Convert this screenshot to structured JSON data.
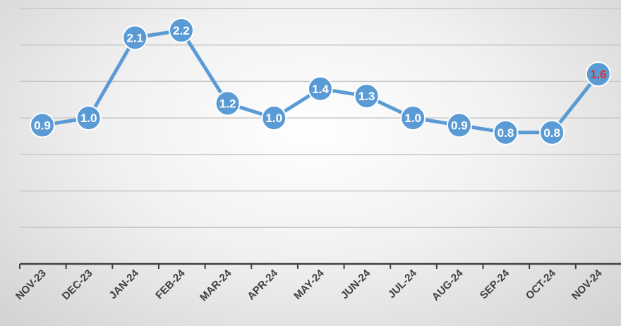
{
  "chart_data": {
    "type": "line",
    "categories": [
      "NOV-23",
      "DEC-23",
      "JAN-24",
      "FEB-24",
      "MAR-24",
      "APR-24",
      "MAY-24",
      "JUN-24",
      "JUL-24",
      "AUG-24",
      "SEP-24",
      "OCT-24",
      "NOV-24"
    ],
    "series": [
      {
        "values": [
          0.9,
          1.0,
          2.1,
          2.2,
          1.2,
          1.0,
          1.4,
          1.3,
          1.0,
          0.9,
          0.8,
          0.8,
          1.6
        ],
        "labels": [
          "0.9",
          "1.0",
          "2.1",
          "2.2",
          "1.2",
          "1.0",
          "1.4",
          "1.3",
          "1.0",
          "0.9",
          "0.8",
          "0.8",
          "1.6"
        ],
        "color": "#5b9bd5"
      }
    ],
    "highlight_index": 12,
    "highlight_label_color": "#e03030",
    "ylim": [
      -1.0,
      2.5
    ],
    "gridline_step": 0.5,
    "grid": true,
    "legend": "none",
    "title": "",
    "xlabel": "",
    "ylabel": ""
  }
}
